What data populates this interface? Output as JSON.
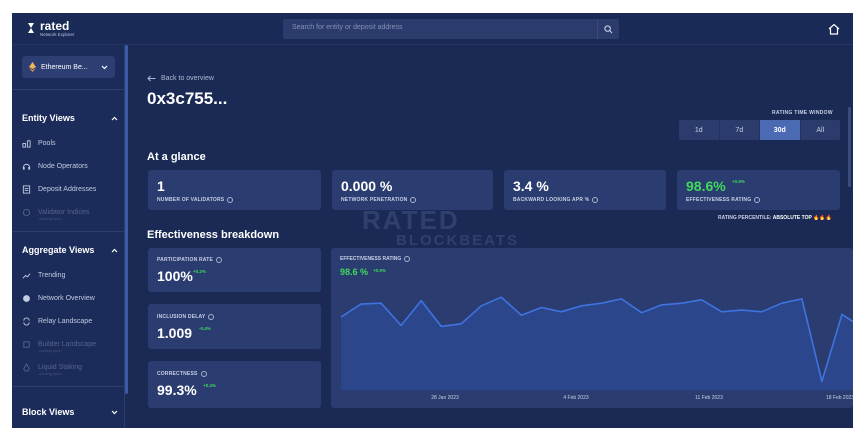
{
  "app": {
    "logo_name": "rated",
    "logo_subtitle": "Network Explorer"
  },
  "search": {
    "placeholder": "Search for entity or deposit address"
  },
  "sidebar": {
    "network_selector": "Ethereum Be...",
    "entity_views": {
      "title": "Entity Views",
      "items": [
        {
          "label": "Pools",
          "icon": "pools-icon"
        },
        {
          "label": "Node Operators",
          "icon": "headset-icon"
        },
        {
          "label": "Deposit Addresses",
          "icon": "document-icon"
        },
        {
          "label": "Validator Indices",
          "sub": "coming soon",
          "icon": "validator-icon"
        }
      ]
    },
    "aggregate_views": {
      "title": "Aggregate Views",
      "items": [
        {
          "label": "Trending",
          "icon": "trending-icon"
        },
        {
          "label": "Network Overview",
          "icon": "globe-icon"
        },
        {
          "label": "Relay Landscape",
          "icon": "relay-icon"
        },
        {
          "label": "Builder Landscape",
          "sub": "coming soon",
          "icon": "builder-icon"
        },
        {
          "label": "Liquid Staking",
          "sub": "coming soon",
          "icon": "liquid-icon"
        }
      ]
    },
    "block_views": {
      "title": "Block Views"
    }
  },
  "main": {
    "back_label": "Back to overview",
    "validator_id": "0x3c755...",
    "time_window": {
      "label": "RATING TIME WINDOW",
      "options": [
        "1d",
        "7d",
        "30d",
        "All"
      ],
      "selected": "30d"
    },
    "at_a_glance": {
      "title": "At a glance",
      "cards": [
        {
          "value": "1",
          "label": "NUMBER OF VALIDATORS",
          "delta": ""
        },
        {
          "value": "0.000 %",
          "label": "NETWORK PENETRATION",
          "delta": ""
        },
        {
          "value": "3.4 %",
          "label": "BACKWARD LOOKING APR %",
          "delta": ""
        },
        {
          "value": "98.6%",
          "label": "EFFECTIVENESS RATING",
          "delta": "+0.9%"
        }
      ],
      "percentile_label": "RATING PERCENTILE:",
      "percentile_value": "ABSOLUTE TOP",
      "percentile_flames": "🔥🔥🔥"
    },
    "effectiveness": {
      "title": "Effectiveness breakdown",
      "cards": [
        {
          "value": "100%",
          "label": "PARTICIPATION RATE",
          "delta": "+0.2%"
        },
        {
          "value": "1.009",
          "label": "INCLUSION DELAY",
          "delta": "-0.4%"
        },
        {
          "value": "99.3%",
          "label": "CORRECTNESS",
          "delta": "+0.4%"
        }
      ]
    },
    "watermark": {
      "line1": "RATED",
      "line2": "BLOCKBEATS"
    }
  },
  "chart_data": {
    "type": "area",
    "title": "EFFECTIVENESS RATING",
    "headline_value": "98.6 %",
    "headline_delta": "+0.9%",
    "x_tick_labels": [
      "28 Jan 2023",
      "4 Feb 2023",
      "11 Feb 2023",
      "18 Feb 2023"
    ],
    "values": [
      96.0,
      97.5,
      97.6,
      95.0,
      97.9,
      94.9,
      95.2,
      97.3,
      98.3,
      96.2,
      97.1,
      96.6,
      97.3,
      97.6,
      98.1,
      96.5,
      97.4,
      97.6,
      98.0,
      96.6,
      96.8,
      96.6,
      97.6,
      98.1,
      88.5,
      96.3,
      94.8
    ],
    "color": "#3f73e0",
    "fill": "#2c4a94",
    "grid": false
  },
  "colors": {
    "background": "#1b2a55",
    "card": "#2b3d70",
    "accent": "#4a6ab4",
    "positive": "#3fd95a"
  }
}
